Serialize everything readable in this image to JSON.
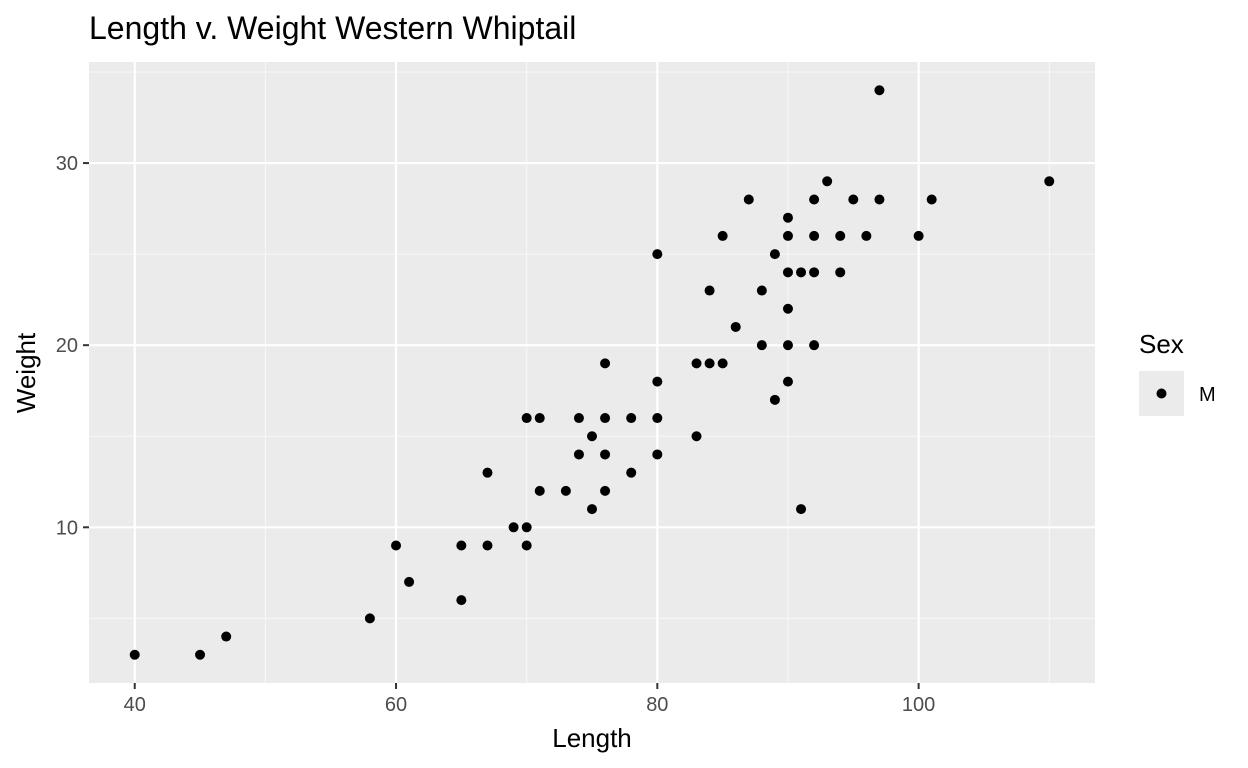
{
  "chart_data": {
    "type": "scatter",
    "title": "Length v. Weight Western Whiptail",
    "xlabel": "Length",
    "ylabel": "Weight",
    "xlim": [
      36.5,
      113.5
    ],
    "ylim": [
      1.45,
      35.55
    ],
    "x_major_ticks": [
      40,
      60,
      80,
      100
    ],
    "x_minor_ticks": [
      50,
      70,
      90,
      110
    ],
    "y_major_ticks": [
      10,
      20,
      30
    ],
    "y_minor_ticks": [
      5,
      15,
      25,
      35
    ],
    "x_tick_labels": [
      "40",
      "60",
      "80",
      "100"
    ],
    "y_tick_labels": [
      "10",
      "20",
      "30"
    ],
    "grid": true,
    "legend": {
      "title": "Sex",
      "position": "right",
      "entries": [
        "M"
      ]
    },
    "colors": {
      "panel_background": "#ebebeb",
      "grid_major": "#ffffff",
      "grid_minor": "#f7f7f7",
      "point": "#000000",
      "legend_key_background": "#ebebeb"
    },
    "series": [
      {
        "name": "M",
        "points": [
          [
            40,
            3
          ],
          [
            45,
            3
          ],
          [
            47,
            4
          ],
          [
            58,
            5
          ],
          [
            60,
            9
          ],
          [
            61,
            7
          ],
          [
            65,
            9
          ],
          [
            65,
            6
          ],
          [
            67,
            13
          ],
          [
            67,
            9
          ],
          [
            69,
            10
          ],
          [
            70,
            16
          ],
          [
            70,
            10
          ],
          [
            70,
            9
          ],
          [
            71,
            16
          ],
          [
            71,
            12
          ],
          [
            73,
            12
          ],
          [
            74,
            16
          ],
          [
            74,
            14
          ],
          [
            75,
            15
          ],
          [
            75,
            11
          ],
          [
            76,
            19
          ],
          [
            76,
            16
          ],
          [
            76,
            14
          ],
          [
            76,
            12
          ],
          [
            78,
            16
          ],
          [
            78,
            13
          ],
          [
            80,
            25
          ],
          [
            80,
            18
          ],
          [
            80,
            16
          ],
          [
            80,
            14
          ],
          [
            83,
            19
          ],
          [
            83,
            15
          ],
          [
            84,
            23
          ],
          [
            84,
            19
          ],
          [
            85,
            26
          ],
          [
            85,
            19
          ],
          [
            86,
            21
          ],
          [
            87,
            28
          ],
          [
            88,
            23
          ],
          [
            88,
            20
          ],
          [
            89,
            25
          ],
          [
            89,
            17
          ],
          [
            90,
            27
          ],
          [
            90,
            26
          ],
          [
            90,
            24
          ],
          [
            90,
            22
          ],
          [
            90,
            20
          ],
          [
            90,
            18
          ],
          [
            91,
            24
          ],
          [
            91,
            11
          ],
          [
            92,
            28
          ],
          [
            92,
            26
          ],
          [
            92,
            24
          ],
          [
            92,
            20
          ],
          [
            93,
            29
          ],
          [
            94,
            26
          ],
          [
            94,
            24
          ],
          [
            95,
            28
          ],
          [
            96,
            26
          ],
          [
            97,
            34
          ],
          [
            97,
            28
          ],
          [
            100,
            26
          ],
          [
            101,
            28
          ],
          [
            110,
            29
          ]
        ]
      }
    ]
  }
}
